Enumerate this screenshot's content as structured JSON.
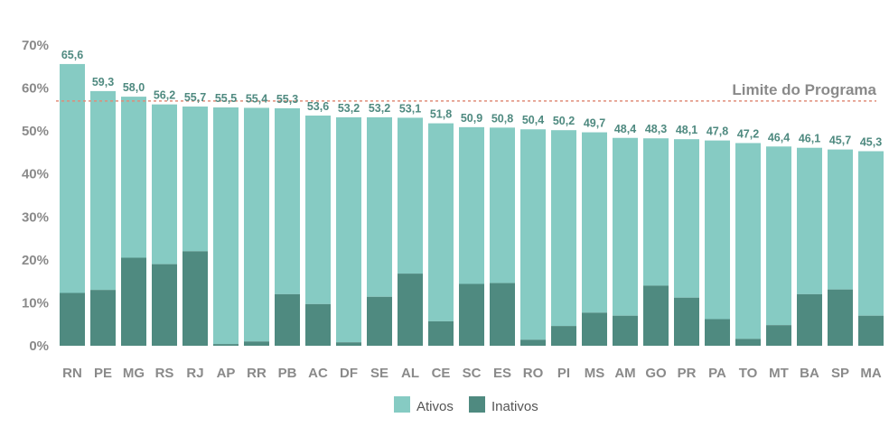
{
  "chart_data": {
    "type": "bar",
    "stacked": true,
    "categories": [
      "RN",
      "PE",
      "MG",
      "RS",
      "RJ",
      "AP",
      "RR",
      "PB",
      "AC",
      "DF",
      "SE",
      "AL",
      "CE",
      "SC",
      "ES",
      "RO",
      "PI",
      "MS",
      "AM",
      "GO",
      "PR",
      "PA",
      "TO",
      "MT",
      "BA",
      "SP",
      "MA"
    ],
    "series": [
      {
        "name": "Inativos",
        "color": "#4f8a80",
        "values": [
          12.3,
          13.0,
          20.5,
          19.0,
          22.0,
          0.4,
          1.0,
          12.0,
          9.7,
          0.8,
          11.4,
          16.8,
          5.7,
          14.4,
          14.6,
          1.4,
          4.6,
          7.7,
          7.0,
          14.0,
          11.2,
          6.2,
          1.6,
          4.8,
          12.0,
          13.1,
          7.0
        ]
      },
      {
        "name": "Ativos",
        "color": "#86cbc3",
        "values": [
          53.3,
          46.3,
          37.5,
          37.2,
          33.7,
          55.1,
          54.4,
          43.3,
          43.9,
          52.4,
          41.8,
          36.3,
          46.1,
          36.5,
          36.2,
          49.0,
          45.6,
          42.0,
          41.4,
          34.3,
          36.9,
          41.6,
          45.6,
          41.6,
          34.1,
          32.6,
          38.3
        ]
      }
    ],
    "totals": [
      "65,6",
      "59,3",
      "58,0",
      "56,2",
      "55,7",
      "55,5",
      "55,4",
      "55,3",
      "53,6",
      "53,2",
      "53,2",
      "53,1",
      "51,8",
      "50,9",
      "50,8",
      "50,4",
      "50,2",
      "49,7",
      "48,4",
      "48,3",
      "48,1",
      "47,8",
      "47,2",
      "46,4",
      "46,1",
      "45,7",
      "45,3"
    ],
    "total_values": [
      65.6,
      59.3,
      58.0,
      56.2,
      55.7,
      55.5,
      55.4,
      55.3,
      53.6,
      53.2,
      53.2,
      53.1,
      51.8,
      50.9,
      50.8,
      50.4,
      50.2,
      49.7,
      48.4,
      48.3,
      48.1,
      47.8,
      47.2,
      46.4,
      46.1,
      45.7,
      45.3
    ],
    "ylim": [
      0,
      70
    ],
    "yticks": [
      "0%",
      "10%",
      "20%",
      "30%",
      "40%",
      "50%",
      "60%",
      "70%"
    ],
    "reference_line": {
      "label": "Limite do Programa",
      "value": 57,
      "color": "#e08d7a"
    },
    "legend": {
      "placement": "bottom-center",
      "entries": [
        "Ativos",
        "Inativos"
      ]
    },
    "grid": false,
    "title": "",
    "xlabel": "",
    "ylabel": ""
  },
  "legend": {
    "ativos_label": "Ativos",
    "inativos_label": "Inativos"
  },
  "colors": {
    "ativos": "#86cbc3",
    "inativos": "#4f8a80",
    "label": "#4f8a80",
    "axis_text": "#8a8a8a",
    "reference": "#e08d7a"
  }
}
